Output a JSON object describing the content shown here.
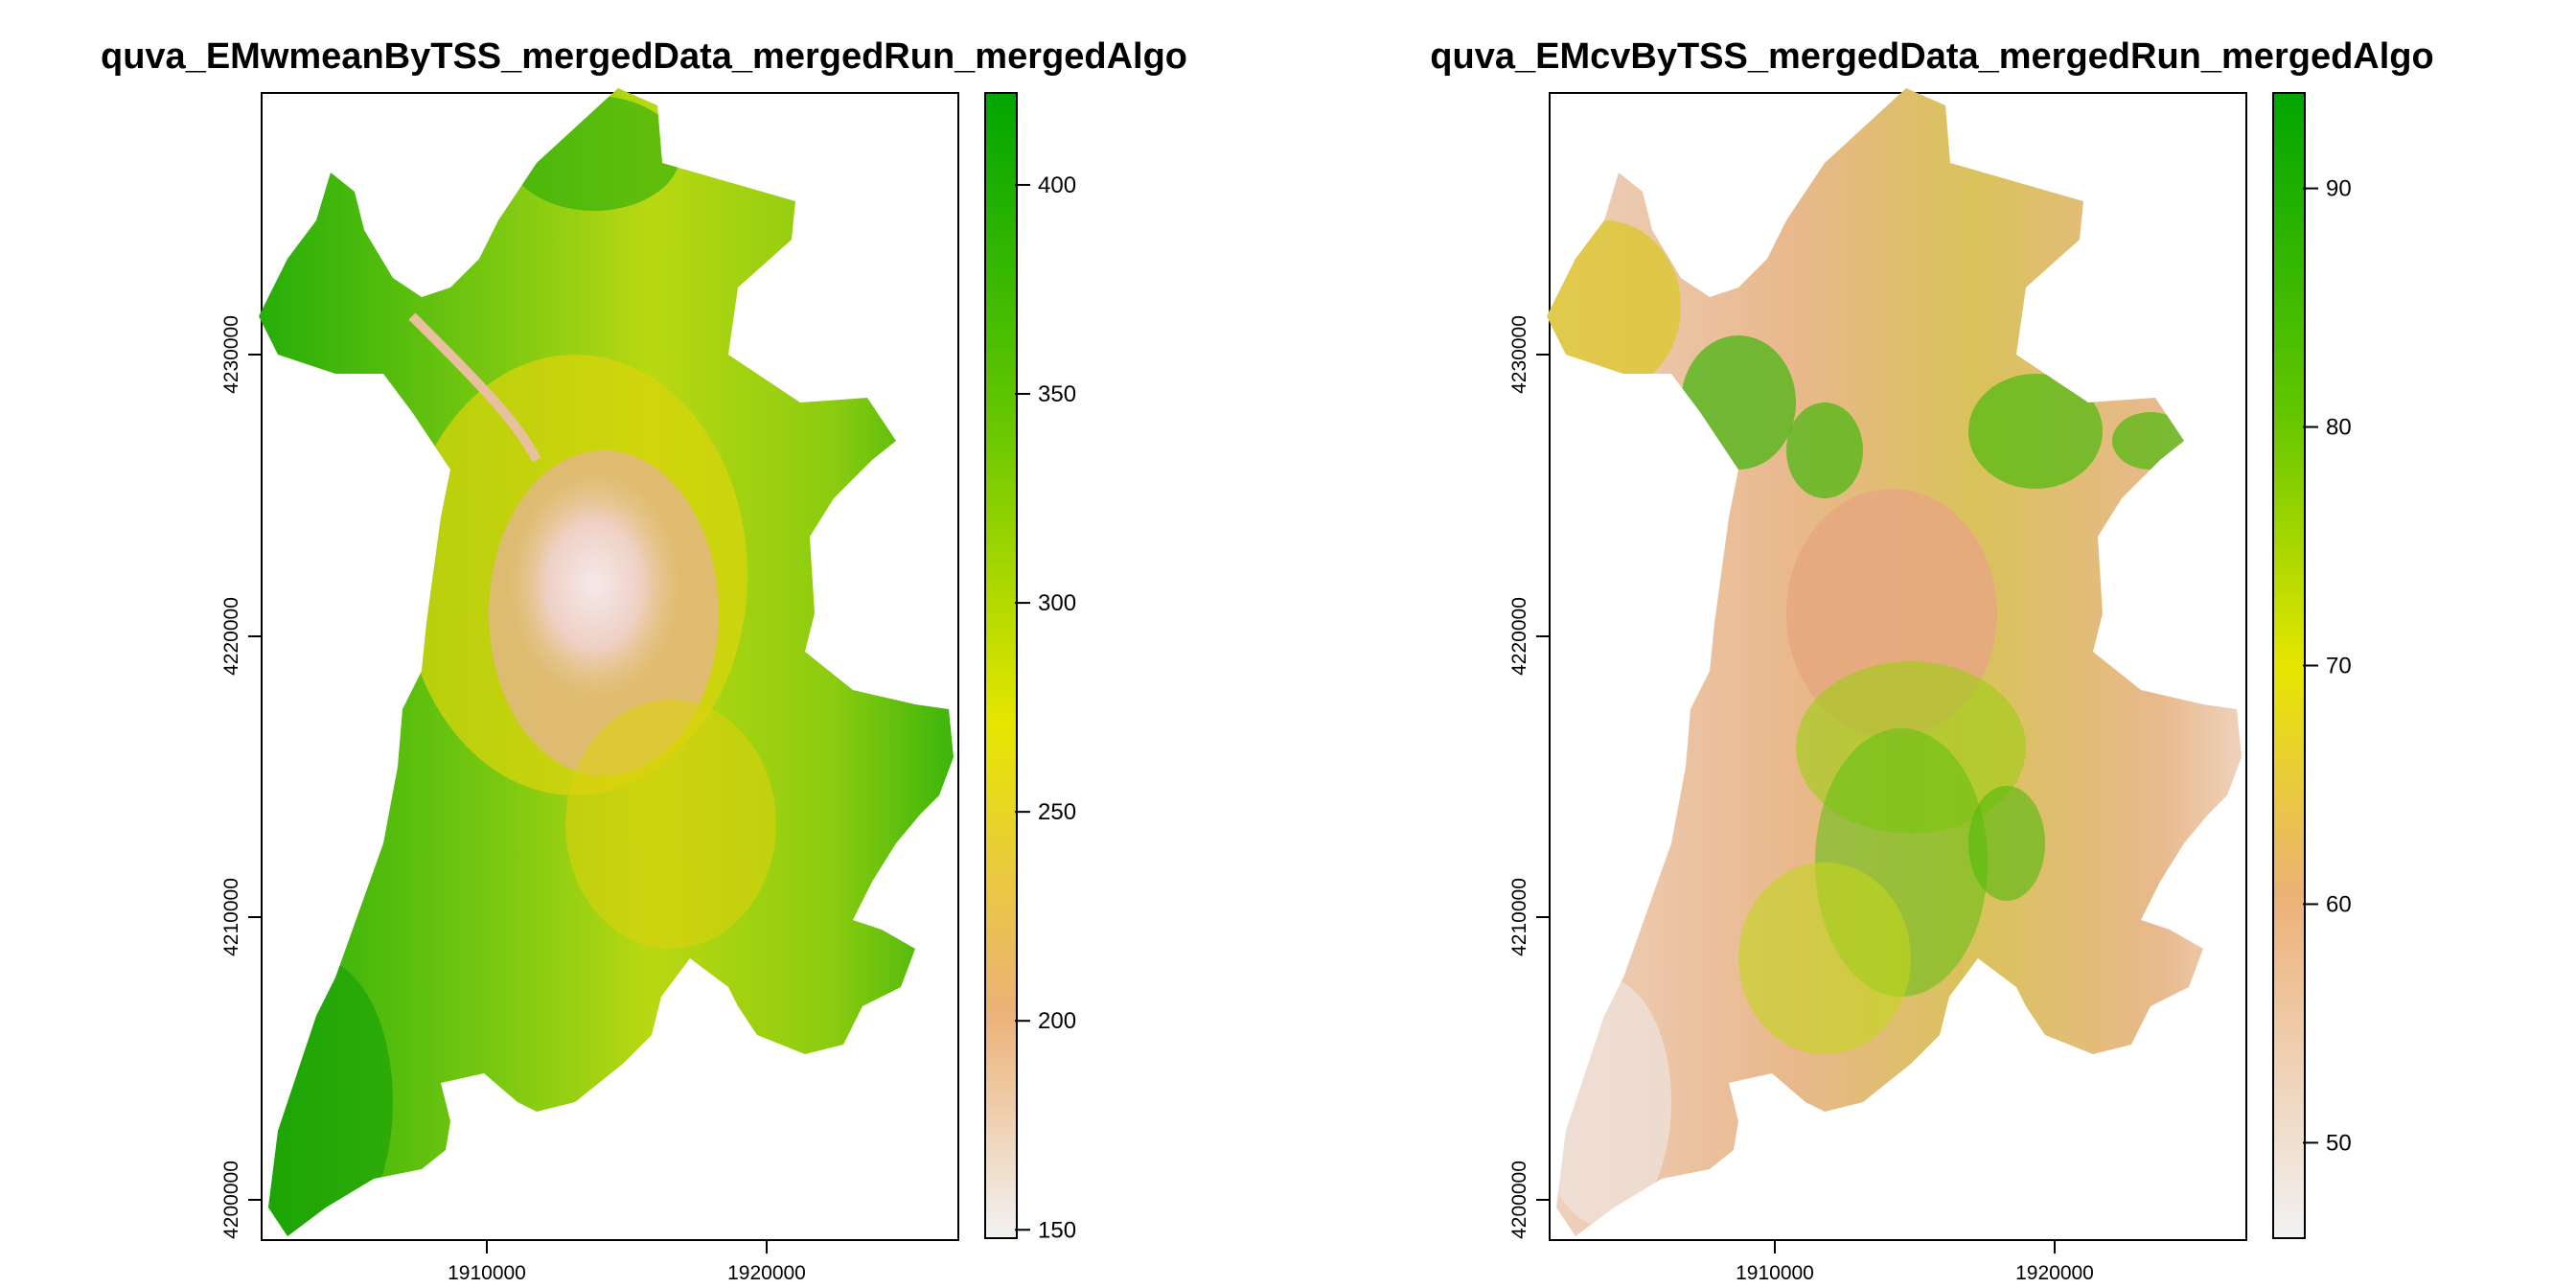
{
  "maps": [
    {
      "title": "quva_EMwmeanByTSS_mergedData_mergedRun_mergedAlgo",
      "x_ticks": [
        "1910000",
        "1920000"
      ],
      "y_ticks": [
        "4200000",
        "4210000",
        "4220000",
        "4230000"
      ],
      "legend": {
        "ticks": [
          "150",
          "200",
          "250",
          "300",
          "350",
          "400"
        ],
        "tick_values": [
          150,
          200,
          250,
          300,
          350,
          400
        ],
        "range": [
          148,
          422
        ]
      }
    },
    {
      "title": "quva_EMcvByTSS_mergedData_mergedRun_mergedAlgo",
      "x_ticks": [
        "1910000",
        "1920000"
      ],
      "y_ticks": [
        "4200000",
        "4210000",
        "4220000",
        "4230000"
      ],
      "legend": {
        "ticks": [
          "50",
          "60",
          "70",
          "80",
          "90"
        ],
        "tick_values": [
          50,
          60,
          70,
          80,
          90
        ],
        "range": [
          46,
          94
        ]
      }
    }
  ],
  "colors": {
    "ramp": [
      "#f2f2f2",
      "#ecb176",
      "#e6e600",
      "#63c600",
      "#00a600"
    ]
  }
}
